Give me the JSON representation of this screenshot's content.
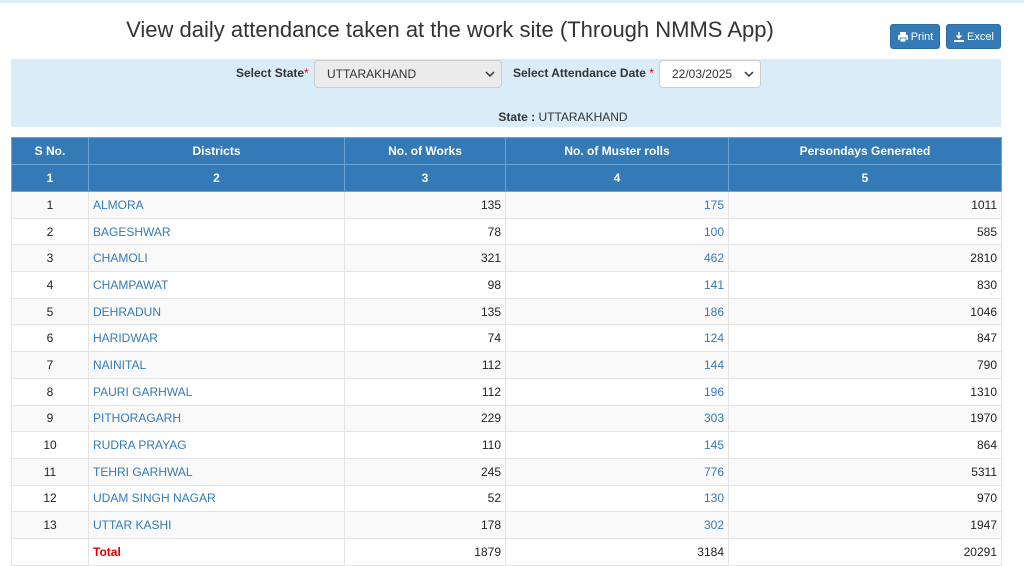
{
  "title": "View daily attendance taken at the work site (Through NMMS App)",
  "buttons": {
    "print": "Print",
    "excel": "Excel"
  },
  "filters": {
    "state_label": "Select State",
    "state_value": "UTTARAKHAND",
    "date_label": "Select Attendance Date",
    "date_value": "22/03/2025",
    "required_mark": "*"
  },
  "state_info": {
    "label": "State :",
    "value": "UTTARAKHAND"
  },
  "table": {
    "headers": [
      "S No.",
      "Districts",
      "No. of Works",
      "No. of Muster rolls",
      "Persondays Generated"
    ],
    "index_row": [
      "1",
      "2",
      "3",
      "4",
      "5"
    ],
    "rows": [
      {
        "sno": "1",
        "district": "ALMORA",
        "works": "135",
        "muster": "175",
        "persondays": "1011"
      },
      {
        "sno": "2",
        "district": "BAGESHWAR",
        "works": "78",
        "muster": "100",
        "persondays": "585"
      },
      {
        "sno": "3",
        "district": "CHAMOLI",
        "works": "321",
        "muster": "462",
        "persondays": "2810"
      },
      {
        "sno": "4",
        "district": "CHAMPAWAT",
        "works": "98",
        "muster": "141",
        "persondays": "830"
      },
      {
        "sno": "5",
        "district": "DEHRADUN",
        "works": "135",
        "muster": "186",
        "persondays": "1046"
      },
      {
        "sno": "6",
        "district": "HARIDWAR",
        "works": "74",
        "muster": "124",
        "persondays": "847"
      },
      {
        "sno": "7",
        "district": "NAINITAL",
        "works": "112",
        "muster": "144",
        "persondays": "790"
      },
      {
        "sno": "8",
        "district": "PAURI GARHWAL",
        "works": "112",
        "muster": "196",
        "persondays": "1310"
      },
      {
        "sno": "9",
        "district": "PITHORAGARH",
        "works": "229",
        "muster": "303",
        "persondays": "1970"
      },
      {
        "sno": "10",
        "district": "RUDRA PRAYAG",
        "works": "110",
        "muster": "145",
        "persondays": "864"
      },
      {
        "sno": "11",
        "district": "TEHRI GARHWAL",
        "works": "245",
        "muster": "776",
        "persondays": "5311"
      },
      {
        "sno": "12",
        "district": "UDAM SINGH NAGAR",
        "works": "52",
        "muster": "130",
        "persondays": "970"
      },
      {
        "sno": "13",
        "district": "UTTAR KASHI",
        "works": "178",
        "muster": "302",
        "persondays": "1947"
      }
    ],
    "total": {
      "label": "Total",
      "works": "1879",
      "muster": "3184",
      "persondays": "20291"
    }
  },
  "colors": {
    "header_bg": "#337ab7",
    "link": "#337ab7",
    "total_label": "#e00000",
    "panel_bg": "#d9ecf7"
  },
  "icons": {
    "print": "printer-icon",
    "excel": "download-icon",
    "dropdown": "chevron-down-icon"
  }
}
